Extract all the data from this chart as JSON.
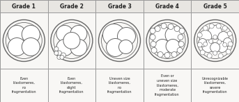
{
  "grades": [
    "Grade 1",
    "Grade 2",
    "Grade 3",
    "Grade 4",
    "Grade 5"
  ],
  "descriptions": [
    "Even\nblastomeres,\nno\nfragmentation",
    "Even\nblastomeres,\nslight\nfragmentation",
    "Uneven size\nblastomeres,\nno\nfragmentation",
    "Even or\nuneven size\nblastomeres,\nmoderate\nfragmentation",
    "Unrecognizable\nblastomeres,\nsevere\nfragmentation"
  ],
  "bg_color": "#f0efed",
  "cell_bg": "#f8f7f5",
  "header_bg": "#e8e6e2",
  "border_color": "#999999",
  "circle_color": "#666666",
  "text_color": "#222222",
  "fig_bg": "#f0efed"
}
